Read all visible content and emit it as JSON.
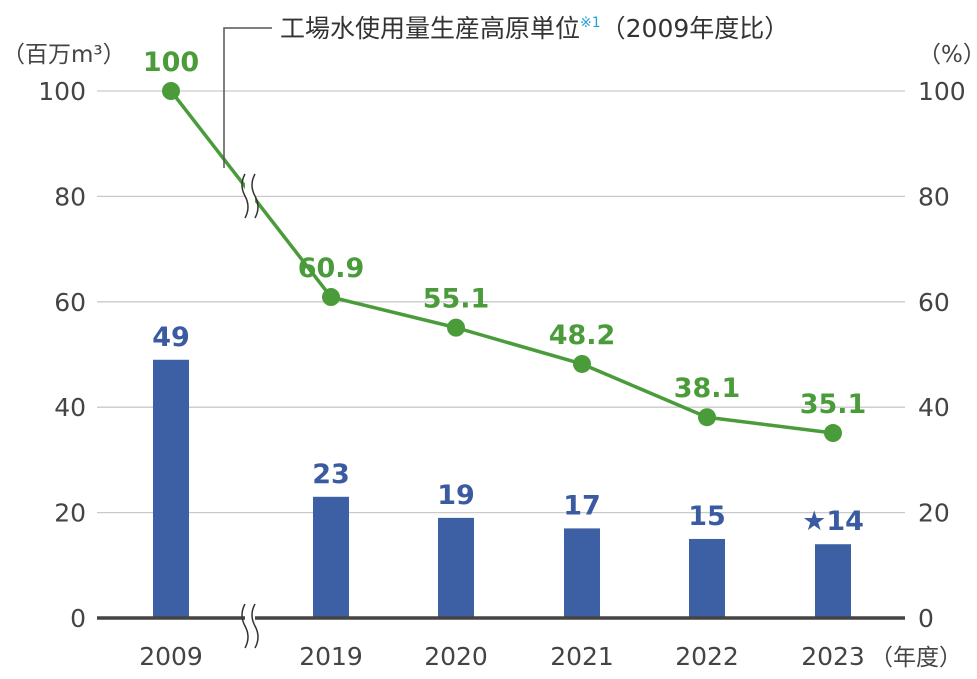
{
  "chart_data": {
    "type": "bar",
    "title": "工場水使用量生産高原単位",
    "title_note": "※1",
    "title_suffix": "（2009年度比）",
    "left_unit": "（百万m³）",
    "right_unit": "（%）",
    "x_unit": "（年度）",
    "categories": [
      "2009",
      "2019",
      "2020",
      "2021",
      "2022",
      "2023"
    ],
    "series": [
      {
        "type": "bar",
        "values": [
          49,
          23,
          19,
          17,
          15,
          14
        ],
        "labels": [
          "49",
          "23",
          "19",
          "17",
          "15",
          "★14"
        ],
        "color": "#3d5fa3",
        "axis": "left"
      },
      {
        "name": "工場水使用量生産高原単位",
        "type": "line",
        "values": [
          100,
          60.9,
          55.1,
          48.2,
          38.1,
          35.1
        ],
        "labels": [
          "100",
          "60.9",
          "55.1",
          "48.2",
          "38.1",
          "35.1"
        ],
        "color": "#4a9b3a",
        "axis": "right"
      }
    ],
    "y_left": {
      "min": 0,
      "max": 100,
      "ticks": [
        0,
        20,
        40,
        60,
        80,
        100
      ]
    },
    "y_right": {
      "min": 0,
      "max": 100,
      "ticks": [
        0,
        20,
        40,
        60,
        80,
        100
      ]
    },
    "grid": true,
    "axis_break_after": "2009",
    "highlight_mark": "★",
    "colors": {
      "bar": "#3d5fa3",
      "line": "#4a9b3a",
      "grid": "#c9c9c9",
      "axis": "#444444",
      "note": "#2aa0d8"
    }
  }
}
